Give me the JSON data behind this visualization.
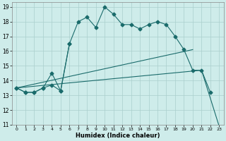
{
  "xlabel": "Humidex (Indice chaleur)",
  "bg_color": "#ceecea",
  "grid_color": "#aacfcc",
  "line_color": "#1a6b6b",
  "xlim": [
    -0.5,
    23.5
  ],
  "ylim": [
    11,
    19.3
  ],
  "xticks": [
    0,
    1,
    2,
    3,
    4,
    5,
    6,
    7,
    8,
    9,
    10,
    11,
    12,
    13,
    14,
    15,
    16,
    17,
    18,
    19,
    20,
    21,
    22,
    23
  ],
  "yticks": [
    11,
    12,
    13,
    14,
    15,
    16,
    17,
    18,
    19
  ],
  "line1_x": [
    0,
    1,
    2,
    3,
    4,
    5,
    6,
    7,
    8,
    9,
    10,
    11,
    12,
    13,
    14,
    15,
    16,
    17,
    18,
    19,
    20,
    21,
    22
  ],
  "line1_y": [
    13.5,
    13.2,
    13.2,
    13.5,
    13.7,
    13.3,
    16.5,
    18.0,
    18.3,
    17.6,
    19.0,
    18.5,
    17.8,
    17.8,
    17.5,
    17.8,
    18.0,
    17.8,
    17.0,
    16.1,
    14.7,
    14.7,
    13.2
  ],
  "line2_x": [
    0,
    1,
    2,
    3,
    4,
    5,
    6
  ],
  "line2_y": [
    13.5,
    13.2,
    13.2,
    13.5,
    14.5,
    13.3,
    16.5
  ],
  "line3_x": [
    0,
    20
  ],
  "line3_y": [
    13.5,
    16.1
  ],
  "line4_x": [
    0,
    21,
    23
  ],
  "line4_y": [
    13.5,
    14.7,
    10.9
  ],
  "markersize": 2.5
}
